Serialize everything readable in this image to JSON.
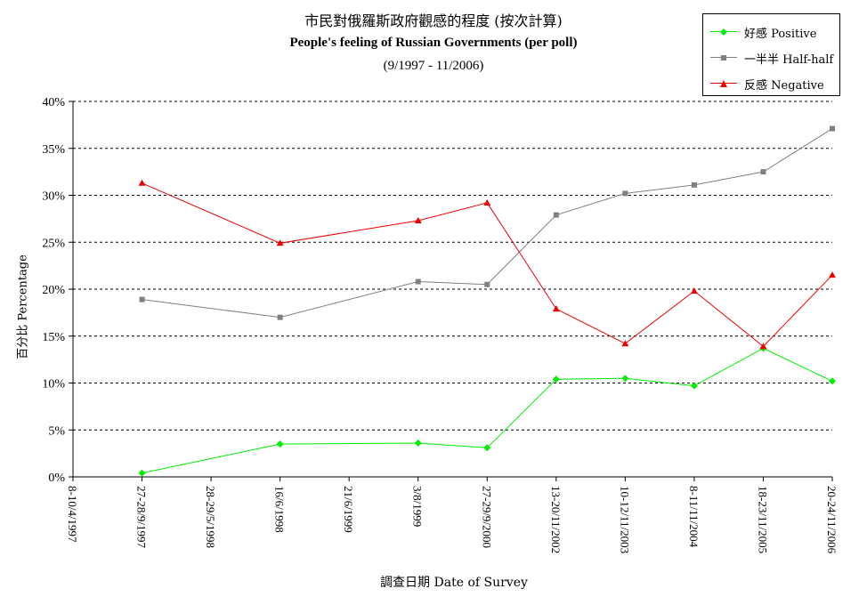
{
  "chart_data": {
    "type": "line",
    "title_zh": "市民對俄羅斯政府觀感的程度 (按次計算)",
    "title_en": "People's feeling of Russian Governments (per poll)",
    "subtitle": "(9/1997 - 11/2006)",
    "xlabel": "調查日期 Date of Survey",
    "ylabel": "百分比 Percentage",
    "categories": [
      "8-10/4/1997",
      "27-28/9/1997",
      "28-29/5/1998",
      "16/6/1998",
      "21/6/1999",
      "3/8/1999",
      "27-29/9/2000",
      "13-20/11/2002",
      "10-12/11/2003",
      "8-11/11/2004",
      "18-23/11/2005",
      "20-24/11/2006"
    ],
    "ylim": [
      0,
      40
    ],
    "yticks": [
      "0%",
      "5%",
      "10%",
      "15%",
      "20%",
      "25%",
      "30%",
      "35%",
      "40%"
    ],
    "grid": "horizontal-dashed",
    "legend_position": "top-right",
    "series": [
      {
        "name": "好感 Positive",
        "color": "#00ee00",
        "marker": "diamond",
        "values": [
          null,
          0.4,
          null,
          3.5,
          null,
          3.6,
          3.1,
          10.4,
          10.5,
          9.7,
          13.7,
          10.2
        ]
      },
      {
        "name": "一半半 Half-half",
        "color": "#808080",
        "marker": "square",
        "values": [
          null,
          18.9,
          null,
          17.0,
          null,
          20.8,
          20.5,
          27.9,
          30.2,
          31.1,
          32.5,
          37.1
        ]
      },
      {
        "name": "反感 Negative",
        "color": "#ee0000",
        "marker": "triangle",
        "values": [
          null,
          31.3,
          null,
          24.9,
          null,
          27.3,
          29.2,
          17.9,
          14.2,
          19.8,
          13.9,
          21.5
        ]
      }
    ]
  }
}
